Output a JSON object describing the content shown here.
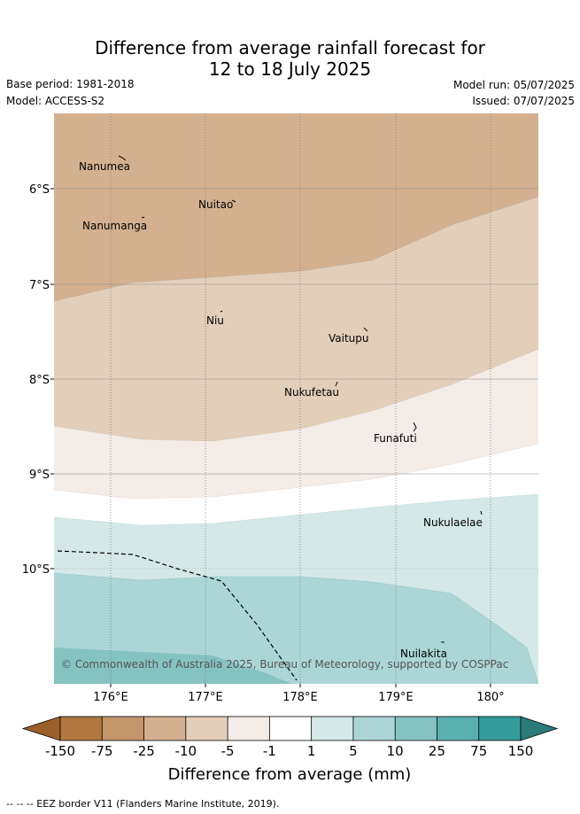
{
  "title": {
    "line1": "Difference from average rainfall forecast for",
    "line2": "12 to 18 July 2025"
  },
  "meta": {
    "base_period": "Base period: 1981-2018",
    "model": "Model: ACCESS-S2",
    "model_run": "Model run: 05/07/2025",
    "issued": "Issued: 07/07/2025"
  },
  "map": {
    "lat_labels": [
      "6°S",
      "7°S",
      "8°S",
      "9°S",
      "10°S"
    ],
    "lon_labels": [
      "176°E",
      "177°E",
      "178°E",
      "179°E",
      "180°"
    ],
    "places": [
      "Nanumea",
      "Nuitao",
      "Nanumanga",
      "Niu",
      "Vaitupu",
      "Nukufetau",
      "Funafuti",
      "Nukulaelae",
      "Nuilakita"
    ],
    "copyright": "© Commonwealth of Australia 2025, Bureau of Meteorology, supported by COSPPac"
  },
  "legend": {
    "title": "Difference from average (mm)",
    "ticks": [
      "-150",
      "-75",
      "-25",
      "-10",
      "-5",
      "-1",
      "1",
      "5",
      "10",
      "25",
      "75",
      "150"
    ],
    "colors": [
      "#9c5f2a",
      "#b07740",
      "#c4966b",
      "#d3b190",
      "#e3ceba",
      "#f4ece7",
      "#ffffff",
      "#d4e9e7",
      "#acd6d5",
      "#85c3c1",
      "#5aafaf",
      "#349d9c",
      "#2b7b7b"
    ]
  },
  "footnote": "-- -- -- EEZ border V11 (Flanders Marine Institute, 2019)."
}
